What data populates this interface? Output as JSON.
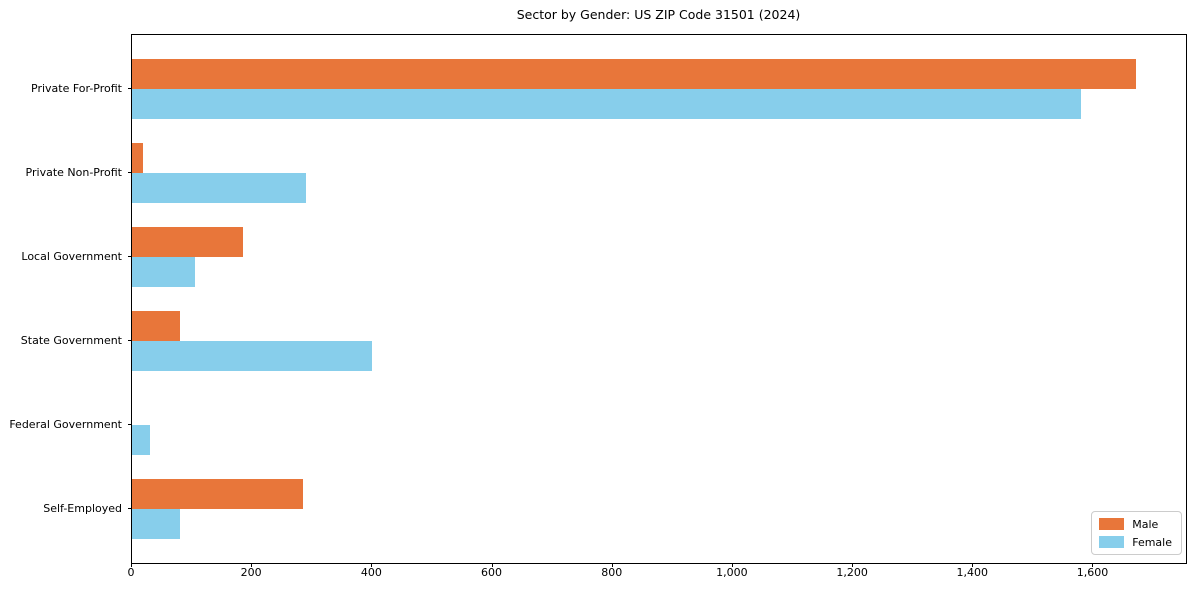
{
  "title": "Sector by Gender: US ZIP Code 31501 (2024)",
  "chart_data": {
    "type": "bar",
    "orientation": "horizontal",
    "title": "Sector by Gender: US ZIP Code 31501 (2024)",
    "xlabel": "",
    "ylabel": "",
    "categories": [
      "Private For-Profit",
      "Private Non-Profit",
      "Local Government",
      "State Government",
      "Federal Government",
      "Self-Employed"
    ],
    "series": [
      {
        "name": "Male",
        "color": "#e8763a",
        "values": [
          1670,
          18,
          185,
          80,
          0,
          285
        ]
      },
      {
        "name": "Female",
        "color": "#87ceeb",
        "values": [
          1580,
          290,
          105,
          400,
          30,
          80
        ]
      }
    ],
    "xlim": [
      0,
      1754
    ],
    "xticks": [
      0,
      200,
      400,
      600,
      800,
      1000,
      1200,
      1400,
      1600
    ],
    "xtick_labels": [
      "0",
      "200",
      "400",
      "600",
      "800",
      "1,000",
      "1,200",
      "1,400",
      "1,600"
    ],
    "grid": false,
    "legend_position": "lower right",
    "background": "#ffffff",
    "spine_color": "#000000"
  }
}
